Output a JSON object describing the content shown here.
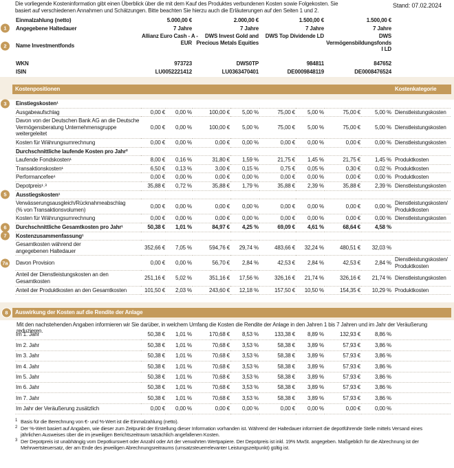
{
  "header": {
    "intro": "Die vorliegende Kosteninformation gibt einen Überblick über die mit dem Kauf des Produktes verbundenen Kosten sowie Folgekosten. Sie basiert auf verschiedenen Annahmen und Schätzungen. Bitte beachten Sie hierzu auch die Erläuterungen auf den Seiten 1 und 2.",
    "date": "Stand: 07.02.2024"
  },
  "summary": {
    "rows": [
      {
        "label": "Einmalzahlung (netto)",
        "values": [
          "5.000,00 €",
          "2.000,00 €",
          "1.500,00 €",
          "1.500,00 €"
        ]
      },
      {
        "badge": "1",
        "label": "Angegebene Haltedauer",
        "values": [
          "7 Jahre",
          "7 Jahre",
          "7 Jahre",
          "7 Jahre"
        ]
      },
      {
        "badge": "2",
        "label": "Name Investmentfonds",
        "values": [
          [
            "Allianz Euro Cash - A -",
            "EUR"
          ],
          [
            "DWS Invest Gold and",
            "Precious Metals Equities"
          ],
          [
            "DWS Top Dividende LD"
          ],
          [
            "DWS",
            "Vermögensbildungsfonds",
            "I LD"
          ]
        ]
      },
      {
        "label": "WKN",
        "values": [
          "973723",
          "DWS0TP",
          "984811",
          "847652"
        ]
      },
      {
        "label": "ISIN",
        "values": [
          "LU0052221412",
          "LU0363470401",
          "DE0009848119",
          "DE0008476524"
        ]
      }
    ]
  },
  "costs": {
    "title": "Kostenpositionen",
    "category_header": "Kostenkategorie",
    "rows": [
      {
        "badge": "3",
        "heading": true,
        "label": "Einstiegskosten¹"
      },
      {
        "label": "Ausgabeaufschlag",
        "values": [
          "0,00 €",
          "0,00 %",
          "100,00 €",
          "5,00 %",
          "75,00 €",
          "5,00 %",
          "75,00 €",
          "5,00 %"
        ],
        "category": "Dienstleistungskosten"
      },
      {
        "label": [
          "Davon von der Deutschen Bank AG an die Deutsche",
          "Vermögensberatung Unternehmensgruppe",
          "weitergeleitet"
        ],
        "values": [
          "0,00 €",
          "0,00 %",
          "100,00 €",
          "5,00 %",
          "75,00 €",
          "5,00 %",
          "75,00 €",
          "5,00 %"
        ],
        "category": "Dienstleistungskosten"
      },
      {
        "label": "Kosten für Währungsumrechnung",
        "values": [
          "0,00 €",
          "0,00 %",
          "0,00 €",
          "0,00 %",
          "0,00 €",
          "0,00 %",
          "0,00 €",
          "0,00 %"
        ],
        "category": "Dienstleistungskosten"
      },
      {
        "heading": true,
        "label": "Durchschnittliche laufende Kosten pro Jahr²"
      },
      {
        "label": "Laufende Fondskosten¹",
        "values": [
          "8,00 €",
          "0,16 %",
          "31,80 €",
          "1,59 %",
          "21,75 €",
          "1,45 %",
          "21,75 €",
          "1,45 %"
        ],
        "category": "Produktkosten"
      },
      {
        "label": "Transaktionskosten¹",
        "values": [
          "6,50 €",
          "0,13 %",
          "3,00 €",
          "0,15 %",
          "0,75 €",
          "0,05 %",
          "0,30 €",
          "0,02 %"
        ],
        "category": "Produktkosten"
      },
      {
        "label": "Performancefee¹",
        "values": [
          "0,00 €",
          "0,00 %",
          "0,00 €",
          "0,00 %",
          "0,00 €",
          "0,00 %",
          "0,00 €",
          "0,00 %"
        ],
        "category": "Produktkosten"
      },
      {
        "label": "Depotpreis¹˒³",
        "values": [
          "35,88 €",
          "0,72 %",
          "35,88 €",
          "1,79 %",
          "35,88 €",
          "2,39 %",
          "35,88 €",
          "2,39 %"
        ],
        "category": "Dienstleistungskosten"
      },
      {
        "badge": "5",
        "heading": true,
        "label": "Ausstiegskosten¹"
      },
      {
        "label": [
          "Verwässerungsausgleich/Rücknahmeabschlag",
          "(% von Transaktionsvolumen)"
        ],
        "values": [
          "0,00 €",
          "0,00 %",
          "0,00 €",
          "0,00 %",
          "0,00 €",
          "0,00 %",
          "0,00 €",
          "0,00 %"
        ],
        "category": [
          "Dienstleistungskosten/",
          "Produktkosten"
        ]
      },
      {
        "label": "Kosten für Währungsumrechnung",
        "values": [
          "0,00 €",
          "0,00 %",
          "0,00 €",
          "0,00 %",
          "0,00 €",
          "0,00 %",
          "0,00 €",
          "0,00 %"
        ],
        "category": "Dienstleistungskosten"
      },
      {
        "badge": "6",
        "heading": true,
        "label": "Durchschnittliche Gesamtkosten pro Jahr¹",
        "values": [
          "50,38 €",
          "1,01 %",
          "84,97 €",
          "4,25 %",
          "69,09 €",
          "4,61 %",
          "68,64 €",
          "4,58 %"
        ]
      },
      {
        "badge": "7",
        "heading": true,
        "label": "Kostenzusammenfassung¹"
      },
      {
        "label": [
          "Gesamtkosten während der",
          "angegebenen Haltedauer"
        ],
        "values": [
          "352,66 €",
          "7,05 %",
          "594,76 €",
          "29,74 %",
          "483,66 €",
          "32,24 %",
          "480,51 €",
          "32,03 %"
        ]
      },
      {
        "badge": "7a",
        "label": "Davon Provision",
        "values": [
          "0,00 €",
          "0,00 %",
          "56,70 €",
          "2,84 %",
          "42,53 €",
          "2,84 %",
          "42,53 €",
          "2,84 %"
        ],
        "category": [
          "Dienstleistungskosten/",
          "Produktkosten"
        ]
      },
      {
        "label": [
          "Anteil der Dienstleistungskosten an den",
          "Gesamtkosten"
        ],
        "values": [
          "251,16 €",
          "5,02 %",
          "351,16 €",
          "17,56 %",
          "326,16 €",
          "21,74 %",
          "326,16 €",
          "21,74 %"
        ],
        "category": "Dienstleistungskosten"
      },
      {
        "label": "Anteil der Produktkosten an den Gesamtkosten",
        "values": [
          "101,50 €",
          "2,03 %",
          "243,60 €",
          "12,18 %",
          "157,50 €",
          "10,50 %",
          "154,35 €",
          "10,29 %"
        ],
        "category": "Produktkosten"
      }
    ]
  },
  "impact": {
    "badge": "8",
    "title": "Auswirkung der Kosten auf die Rendite der Anlage",
    "intro": "Mit den nachstehenden Angaben informieren wir Sie darüber, in welchem Umfang die Kosten die Rendite der Anlage in den Jahren 1 bis 7 Jahren und im Jahr der Veräußerung reduzieren.",
    "rows": [
      {
        "label": "Im 1. Jahr",
        "values": [
          "50,38 €",
          "1,01 %",
          "170,68 €",
          "8,53 %",
          "133,38 €",
          "8,89 %",
          "132,93 €",
          "8,86 %"
        ]
      },
      {
        "label": "Im 2. Jahr",
        "values": [
          "50,38 €",
          "1,01 %",
          "70,68 €",
          "3,53 %",
          "58,38 €",
          "3,89 %",
          "57,93 €",
          "3,86 %"
        ]
      },
      {
        "label": "Im 3. Jahr",
        "values": [
          "50,38 €",
          "1,01 %",
          "70,68 €",
          "3,53 %",
          "58,38 €",
          "3,89 %",
          "57,93 €",
          "3,86 %"
        ]
      },
      {
        "label": "Im 4. Jahr",
        "values": [
          "50,38 €",
          "1,01 %",
          "70,68 €",
          "3,53 %",
          "58,38 €",
          "3,89 %",
          "57,93 €",
          "3,86 %"
        ]
      },
      {
        "label": "Im 5. Jahr",
        "values": [
          "50,38 €",
          "1,01 %",
          "70,68 €",
          "3,53 %",
          "58,38 €",
          "3,89 %",
          "57,93 €",
          "3,86 %"
        ]
      },
      {
        "label": "Im 6. Jahr",
        "values": [
          "50,38 €",
          "1,01 %",
          "70,68 €",
          "3,53 %",
          "58,38 €",
          "3,89 %",
          "57,93 €",
          "3,86 %"
        ]
      },
      {
        "label": "Im 7. Jahr",
        "values": [
          "50,38 €",
          "1,01 %",
          "70,68 €",
          "3,53 %",
          "58,38 €",
          "3,89 %",
          "57,93 €",
          "3,86 %"
        ]
      },
      {
        "label": "Im Jahr der Veräußerung zusätzlich",
        "values": [
          "0,00 €",
          "0,00 %",
          "0,00 €",
          "0,00 %",
          "0,00 €",
          "0,00 %",
          "0,00 €",
          "0,00 %"
        ]
      }
    ]
  },
  "footnotes": [
    {
      "mark": "1",
      "text": "Basis für die Berechnung von €- und %-Wert ist die Einmalzahlung (netto)."
    },
    {
      "mark": "2",
      "text": "Der %-Wert basiert auf Angaben, wie dieser zum Zeitpunkt der Erstellung dieser Information vorhanden ist. Während der Haltedauer informiert die depotführende Stelle mittels Versand eines jährlichen Ausweises über die im jeweiligen Berichtszeitraum tatsächlich angefallenen Kosten."
    },
    {
      "mark": "3",
      "text": "Der Depotpreis ist unabhängig vom Depotkurswert oder Anzahl oder Art der verwahrten Wertpapiere. Der Depotpreis ist inkl. 19% MwSt. angegeben. Maßgeblich für die Abrechnung ist der Mehrwertsteuersatz, der am Ende des jeweiligen Abrechnungsreitraums (umsatzsteuerrelevanter Leistungszeitpunkt) gültig ist."
    }
  ]
}
